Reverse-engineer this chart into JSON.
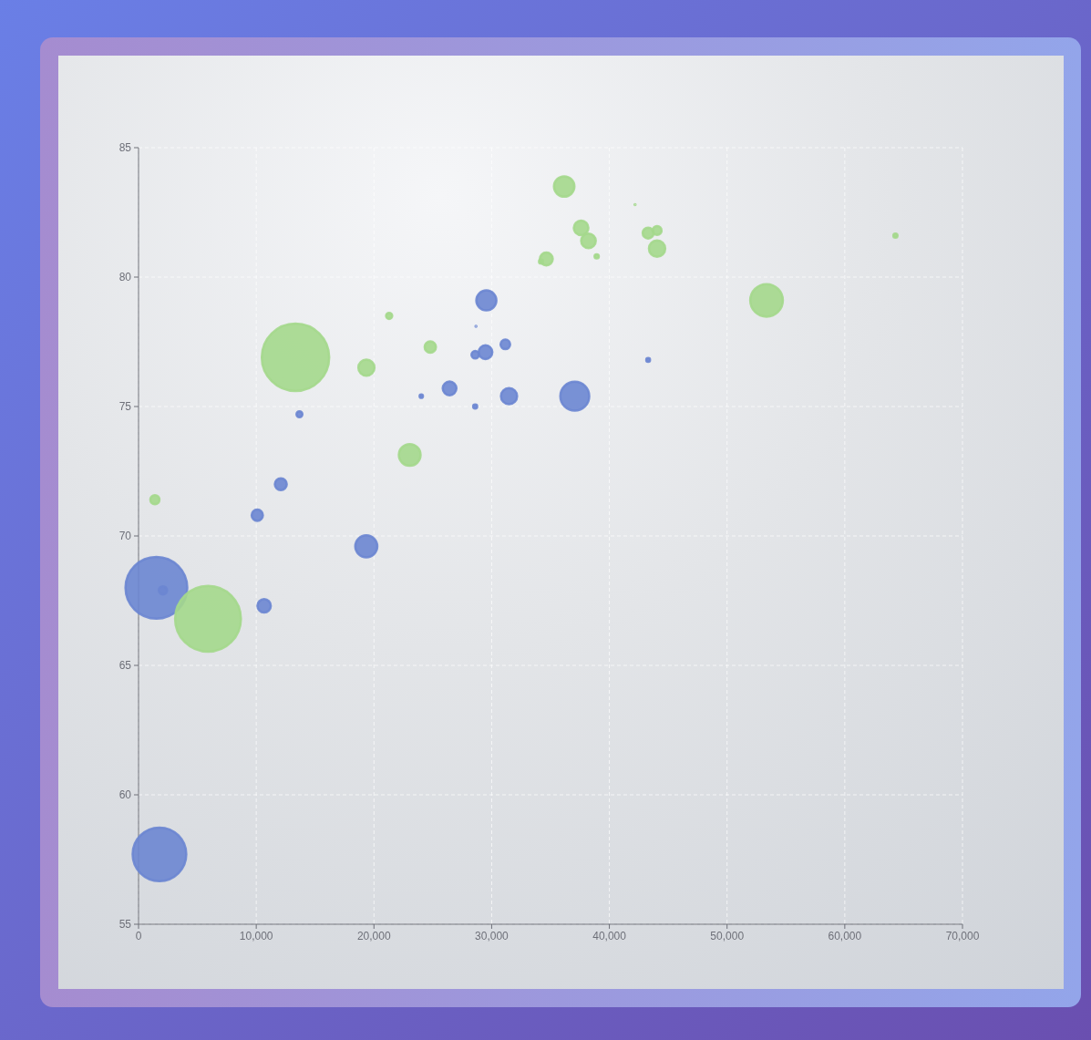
{
  "chart_data": {
    "type": "bubble",
    "xlim": [
      0,
      70000
    ],
    "ylim": [
      55,
      85
    ],
    "xticks": [
      0,
      {
        "value": 10000,
        "label": "10,000"
      },
      {
        "value": 20000,
        "label": "20,000"
      },
      {
        "value": 30000,
        "label": "30,000"
      },
      {
        "value": 40000,
        "label": "40,000"
      },
      {
        "value": 50000,
        "label": "50,000"
      },
      {
        "value": 60000,
        "label": "60,000"
      },
      {
        "value": 70000,
        "label": "70,000"
      }
    ],
    "yticks": [
      55,
      60,
      65,
      70,
      75,
      80,
      85
    ],
    "grid": true,
    "line_style": "dashed",
    "series": [
      {
        "color": "#6b86d1",
        "x": [
          28604,
          31163,
          1516,
          13670,
          28599,
          29476,
          31476,
          28666,
          1777,
          29550,
          2076,
          12087,
          24021,
          43296,
          10088,
          19349,
          10670,
          26424,
          37062
        ],
        "values": [
          77,
          77.4,
          68,
          74.7,
          75,
          77.1,
          75.4,
          78.1,
          57.7,
          79.1,
          67.9,
          72,
          75.4,
          76.8,
          70.8,
          69.6,
          67.3,
          75.7,
          75.4
        ],
        "sizes": [
          0.0124,
          0.0201,
          0.839,
          0.00769,
          0.00362,
          0.0414,
          0.0574,
          0.000185,
          0.633,
          0.0888,
          0.0147,
          0.0312,
          0.00247,
          0.00308,
          0.0278,
          0.107,
          0.0392,
          0.0415,
          0.184
        ]
      },
      {
        "color": "#a4d88c",
        "x": [
          44056,
          43294,
          13334,
          21291,
          38923,
          37599,
          44053,
          42182,
          5903,
          36162,
          1390,
          34644,
          34186,
          64304,
          24787,
          23038,
          19360,
          38225,
          53354
        ],
        "values": [
          81.8,
          81.7,
          76.9,
          78.5,
          80.8,
          81.9,
          81.1,
          82.8,
          66.8,
          83.5,
          71.4,
          80.7,
          80.6,
          81.6,
          77.3,
          73.13,
          76.5,
          81.4,
          79.1
        ],
        "sizes": [
          0.0174,
          0.0261,
          1,
          0.00828,
          0.004,
          0.0468,
          0.0586,
          0.000239,
          0.953,
          0.092,
          0.0183,
          0.0365,
          0.00329,
          0.00379,
          0.0281,
          0.104,
          0.0572,
          0.047,
          0.234
        ]
      }
    ]
  }
}
